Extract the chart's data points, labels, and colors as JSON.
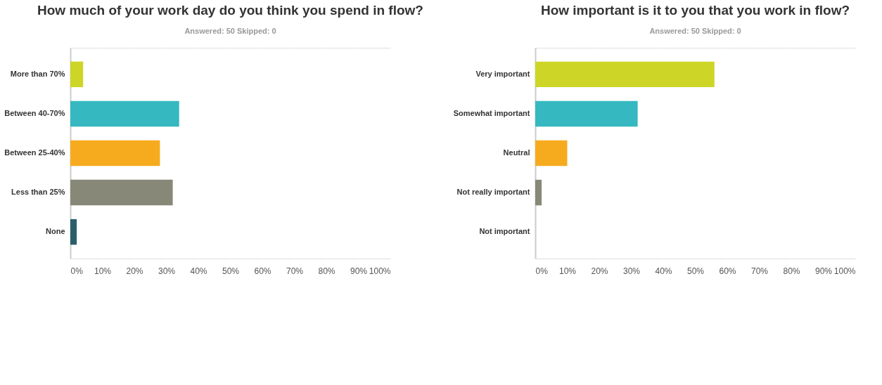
{
  "chart_data": [
    {
      "type": "bar",
      "orientation": "horizontal",
      "title": "How much of your work day do you think you spend in flow?",
      "subtitle": "Answered: 50    Skipped: 0",
      "categories": [
        "More than 70%",
        "Between 40-70%",
        "Between 25-40%",
        "Less than 25%",
        "None"
      ],
      "values": [
        4,
        34,
        28,
        32,
        2
      ],
      "colors": [
        "#cdd626",
        "#35b8c0",
        "#f6ab1f",
        "#878877",
        "#2a5f6a"
      ],
      "xlim": [
        0,
        100
      ],
      "xticks": [
        {
          "value": 0,
          "label": "0%"
        },
        {
          "value": 10,
          "label": "10%"
        },
        {
          "value": 20,
          "label": "20%"
        },
        {
          "value": 30,
          "label": "30%"
        },
        {
          "value": 40,
          "label": "40%"
        },
        {
          "value": 50,
          "label": "50%"
        },
        {
          "value": 60,
          "label": "60%"
        },
        {
          "value": 70,
          "label": "70%"
        },
        {
          "value": 80,
          "label": "80%"
        },
        {
          "value": 90,
          "label": "90%"
        },
        {
          "value": 100,
          "label": "100%"
        }
      ],
      "grid": "x",
      "legend": false
    },
    {
      "type": "bar",
      "orientation": "horizontal",
      "title": "How important is it to you that you work in flow?",
      "subtitle": "Answered: 50    Skipped: 0",
      "categories": [
        "Very important",
        "Somewhat important",
        "Neutral",
        "Not really important",
        "Not important"
      ],
      "values": [
        56,
        32,
        10,
        2,
        0
      ],
      "colors": [
        "#cdd626",
        "#35b8c0",
        "#f6ab1f",
        "#878877",
        "#2a5f6a"
      ],
      "xlim": [
        0,
        100
      ],
      "xticks": [
        {
          "value": 0,
          "label": "0%"
        },
        {
          "value": 10,
          "label": "10%"
        },
        {
          "value": 20,
          "label": "20%"
        },
        {
          "value": 30,
          "label": "30%"
        },
        {
          "value": 40,
          "label": "40%"
        },
        {
          "value": 50,
          "label": "50%"
        },
        {
          "value": 60,
          "label": "60%"
        },
        {
          "value": 70,
          "label": "70%"
        },
        {
          "value": 80,
          "label": "80%"
        },
        {
          "value": 90,
          "label": "90%"
        },
        {
          "value": 100,
          "label": "100%"
        }
      ],
      "grid": "x",
      "legend": false
    }
  ]
}
